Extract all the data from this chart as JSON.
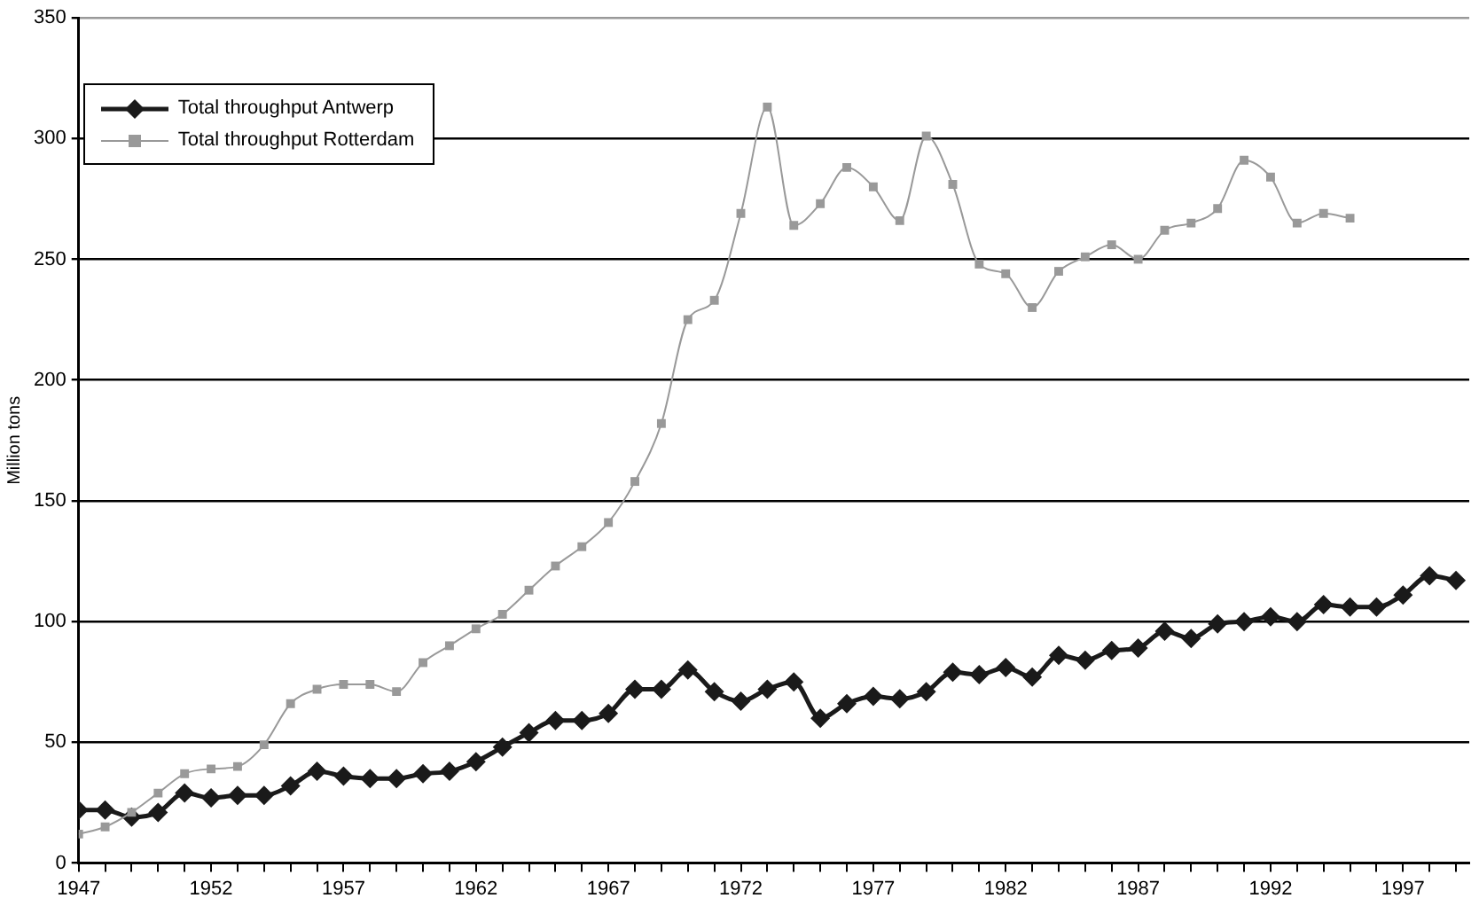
{
  "chart_data": {
    "type": "line",
    "ylabel": "Million tons",
    "x": [
      1947,
      1948,
      1949,
      1950,
      1951,
      1952,
      1953,
      1954,
      1955,
      1956,
      1957,
      1958,
      1959,
      1960,
      1961,
      1962,
      1963,
      1964,
      1965,
      1966,
      1967,
      1968,
      1969,
      1970,
      1971,
      1972,
      1973,
      1974,
      1975,
      1976,
      1977,
      1978,
      1979,
      1980,
      1981,
      1982,
      1983,
      1984,
      1985,
      1986,
      1987,
      1988,
      1989,
      1990,
      1991,
      1992,
      1993,
      1994,
      1995,
      1996,
      1997,
      1998,
      1999
    ],
    "series": [
      {
        "name": "Total throughput Antwerp",
        "color": "#1a1a1a",
        "marker": "diamond",
        "values": [
          22,
          22,
          19,
          21,
          29,
          27,
          28,
          28,
          32,
          38,
          36,
          35,
          35,
          37,
          38,
          42,
          48,
          54,
          59,
          59,
          62,
          72,
          72,
          80,
          71,
          67,
          72,
          75,
          60,
          66,
          69,
          68,
          71,
          79,
          78,
          81,
          77,
          86,
          84,
          88,
          89,
          96,
          93,
          99,
          100,
          102,
          100,
          107,
          106,
          106,
          111,
          119,
          117
        ]
      },
      {
        "name": "Total throughput Rotterdam",
        "color": "#999999",
        "marker": "square",
        "values": [
          12,
          15,
          21,
          29,
          37,
          39,
          40,
          49,
          66,
          72,
          74,
          74,
          71,
          83,
          90,
          97,
          103,
          113,
          123,
          131,
          141,
          158,
          182,
          225,
          233,
          269,
          313,
          264,
          273,
          288,
          280,
          266,
          301,
          281,
          248,
          244,
          230,
          245,
          251,
          256,
          250,
          262,
          265,
          271,
          291,
          284,
          265,
          269,
          267,
          null,
          null,
          null,
          null
        ]
      }
    ],
    "xlim": [
      1947,
      1999.5
    ],
    "xticks": [
      1947,
      {
        "value": 1948,
        "label": null
      },
      {
        "value": 1949,
        "label": null
      },
      {
        "value": 1950,
        "label": null
      },
      {
        "value": 1951,
        "label": null
      },
      1952,
      {
        "value": 1953,
        "label": null
      },
      {
        "value": 1954,
        "label": null
      },
      {
        "value": 1955,
        "label": null
      },
      {
        "value": 1956,
        "label": null
      },
      1957,
      {
        "value": 1958,
        "label": null
      },
      {
        "value": 1959,
        "label": null
      },
      {
        "value": 1960,
        "label": null
      },
      {
        "value": 1961,
        "label": null
      },
      1962,
      {
        "value": 1963,
        "label": null
      },
      {
        "value": 1964,
        "label": null
      },
      {
        "value": 1965,
        "label": null
      },
      {
        "value": 1966,
        "label": null
      },
      1967,
      {
        "value": 1968,
        "label": null
      },
      {
        "value": 1969,
        "label": null
      },
      {
        "value": 1970,
        "label": null
      },
      {
        "value": 1971,
        "label": null
      },
      1972,
      {
        "value": 1973,
        "label": null
      },
      {
        "value": 1974,
        "label": null
      },
      {
        "value": 1975,
        "label": null
      },
      {
        "value": 1976,
        "label": null
      },
      1977,
      {
        "value": 1978,
        "label": null
      },
      {
        "value": 1979,
        "label": null
      },
      {
        "value": 1980,
        "label": null
      },
      {
        "value": 1981,
        "label": null
      },
      1982,
      {
        "value": 1983,
        "label": null
      },
      {
        "value": 1984,
        "label": null
      },
      {
        "value": 1985,
        "label": null
      },
      {
        "value": 1986,
        "label": null
      },
      1987,
      {
        "value": 1988,
        "label": null
      },
      {
        "value": 1989,
        "label": null
      },
      {
        "value": 1990,
        "label": null
      },
      {
        "value": 1991,
        "label": null
      },
      1992,
      {
        "value": 1993,
        "label": null
      },
      {
        "value": 1994,
        "label": null
      },
      {
        "value": 1995,
        "label": null
      },
      {
        "value": 1996,
        "label": null
      },
      1997,
      {
        "value": 1998,
        "label": null
      },
      {
        "value": 1999,
        "label": null
      }
    ],
    "ylim": [
      0,
      350
    ],
    "yticks": [
      0,
      50,
      100,
      150,
      200,
      250,
      300,
      350
    ],
    "grid": "y",
    "legend": "top left"
  }
}
